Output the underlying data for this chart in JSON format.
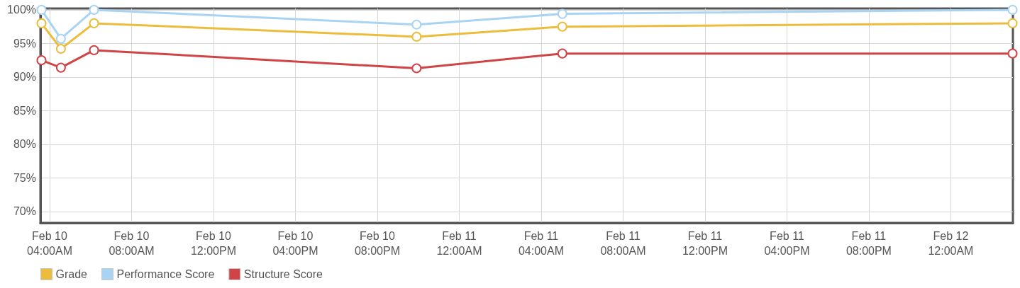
{
  "chart_data": {
    "type": "line",
    "x": [
      "--02-10T03:36",
      "--02-10T04:33",
      "--02-10T06:10",
      "--02-10T21:55",
      "--02-11T05:02",
      "--02-12T03:01"
    ],
    "series": [
      {
        "name": "Grade",
        "color": "#ecbd3c",
        "values": [
          98,
          94.2,
          98,
          96,
          97.5,
          98
        ]
      },
      {
        "name": "Performance Score",
        "color": "#a9d3f3",
        "values": [
          100,
          95.7,
          100,
          97.8,
          99.4,
          100
        ]
      },
      {
        "name": "Structure Score",
        "color": "#cf4446",
        "values": [
          92.5,
          91.4,
          94,
          91.3,
          93.5,
          93.5
        ]
      }
    ],
    "xlim": [
      "--02-10T03:33",
      "--02-12T03:02"
    ],
    "xticks": [
      {
        "value": "--02-10T04:00",
        "label": "Feb 10\n04:00AM"
      },
      {
        "value": "--02-10T08:00",
        "label": "Feb 10\n08:00AM"
      },
      {
        "value": "--02-10T12:00",
        "label": "Feb 10\n12:00PM"
      },
      {
        "value": "--02-10T16:00",
        "label": "Feb 10\n04:00PM"
      },
      {
        "value": "--02-10T20:00",
        "label": "Feb 10\n08:00PM"
      },
      {
        "value": "--02-11T00:00",
        "label": "Feb 11\n12:00AM"
      },
      {
        "value": "--02-11T04:00",
        "label": "Feb 11\n04:00AM"
      },
      {
        "value": "--02-11T08:00",
        "label": "Feb 11\n08:00AM"
      },
      {
        "value": "--02-11T12:00",
        "label": "Feb 11\n12:00PM"
      },
      {
        "value": "--02-11T16:00",
        "label": "Feb 11\n04:00PM"
      },
      {
        "value": "--02-11T20:00",
        "label": "Feb 11\n08:00PM"
      },
      {
        "value": "--02-12T00:00",
        "label": "Feb 12\n12:00AM"
      }
    ],
    "ylim": [
      68.3,
      100.2
    ],
    "yticks": [
      {
        "value": 70,
        "label": "70%"
      },
      {
        "value": 75,
        "label": "75%"
      },
      {
        "value": 80,
        "label": "80%"
      },
      {
        "value": 85,
        "label": "85%"
      },
      {
        "value": 90,
        "label": "90%"
      },
      {
        "value": 95,
        "label": "95%"
      },
      {
        "value": 100,
        "label": "100%"
      }
    ],
    "grid": true,
    "legend": "bottom left",
    "marker": "circle",
    "line_style": "solid"
  }
}
